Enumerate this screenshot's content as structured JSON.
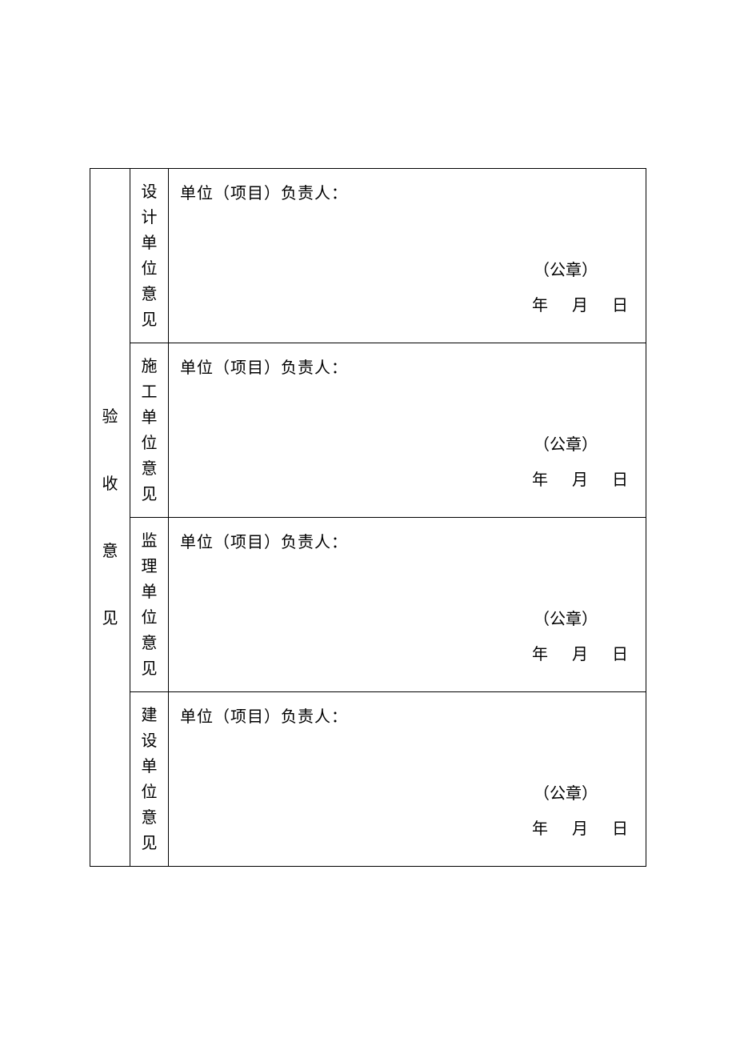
{
  "table": {
    "main_label": "验收意见",
    "rows": [
      {
        "sub_label": "设计单位意见",
        "responsible": "单位（项目）负责人：",
        "seal": "（公章）",
        "date_year": "年",
        "date_month": "月",
        "date_day": "日"
      },
      {
        "sub_label": "施工单位意见",
        "responsible": "单位（项目）负责人：",
        "seal": "（公章）",
        "date_year": "年",
        "date_month": "月",
        "date_day": "日"
      },
      {
        "sub_label": "监理单位意见",
        "responsible": "单位（项目）负责人：",
        "seal": "（公章）",
        "date_year": "年",
        "date_month": "月",
        "date_day": "日"
      },
      {
        "sub_label": "建设单位意见",
        "responsible": "单位（项目）负责人：",
        "seal": "（公章）",
        "date_year": "年",
        "date_month": "月",
        "date_day": "日"
      }
    ]
  },
  "style": {
    "border_color": "#000000",
    "background_color": "#ffffff",
    "text_color": "#000000",
    "font_size_main": 20,
    "font_family": "SimSun"
  }
}
